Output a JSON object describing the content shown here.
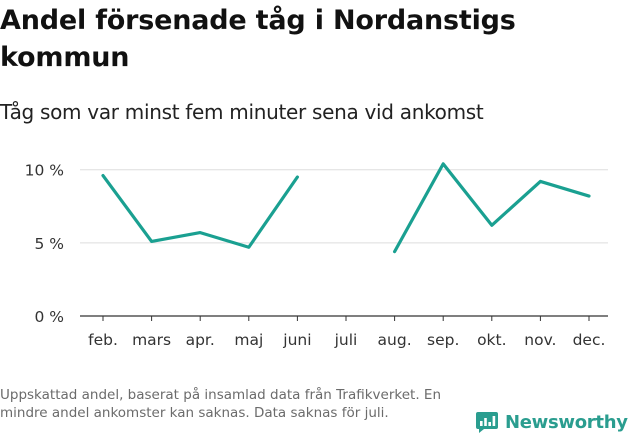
{
  "title": "Andel försenade tåg i Nordanstigs kommun",
  "subtitle": "Tåg som var minst fem minuter sena vid ankomst",
  "note": "Uppskattad andel, baserat på insamlad data från Trafikverket. En mindre andel ankomster kan saknas. Data saknas för juli.",
  "brand": {
    "name": "Newsworthy",
    "icon": "newsworthy-logo-icon"
  },
  "colors": {
    "line": "#1aa091",
    "grid": "#dddddd",
    "axis": "#333333",
    "brand": "#2a9d8f"
  },
  "chart_data": {
    "type": "line",
    "title": "Andel försenade tåg i Nordanstigs kommun",
    "subtitle": "Tåg som var minst fem minuter sena vid ankomst",
    "xlabel": "",
    "ylabel": "",
    "categories": [
      "feb.",
      "mars",
      "apr.",
      "maj",
      "juni",
      "juli",
      "aug.",
      "sep.",
      "okt.",
      "nov.",
      "dec."
    ],
    "series": [
      {
        "values": [
          9.6,
          5.1,
          5.7,
          4.7,
          9.5,
          null,
          4.4,
          10.4,
          6.2,
          9.2,
          8.2
        ]
      }
    ],
    "ylim": [
      0,
      10.8
    ],
    "yticks": [
      0,
      5,
      10
    ],
    "ytick_labels": [
      "0 %",
      "5 %",
      "10 %"
    ],
    "grid": true,
    "legend": "none"
  }
}
